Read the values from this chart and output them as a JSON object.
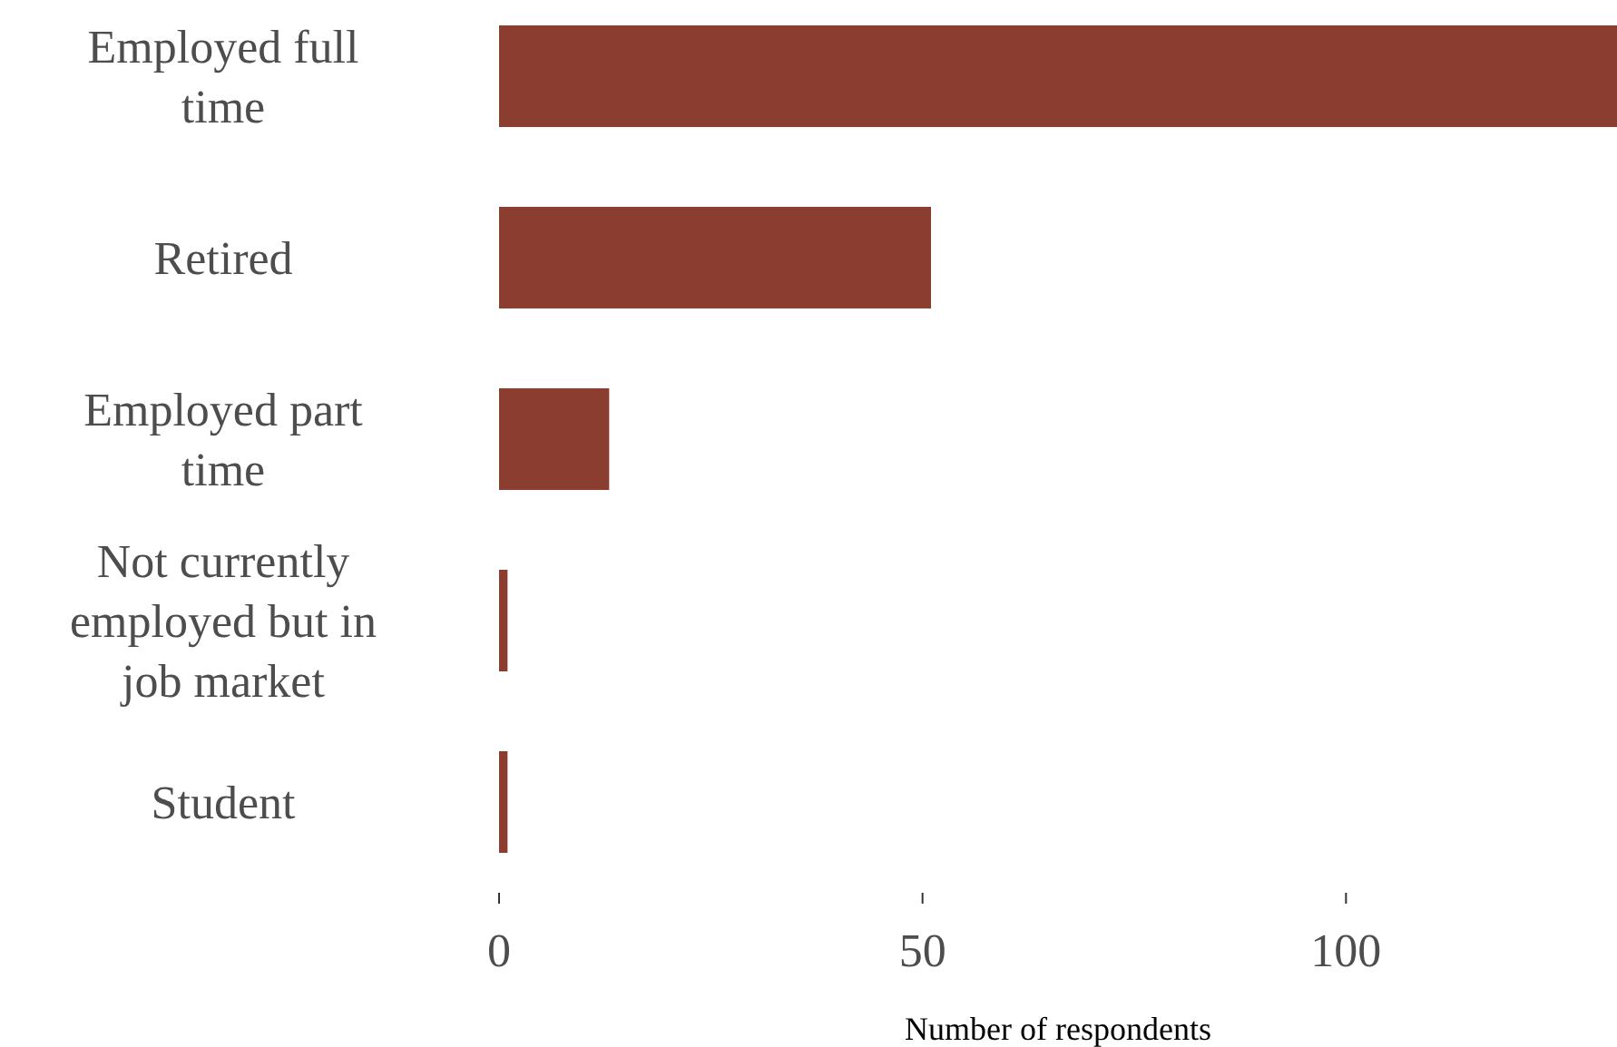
{
  "chart_data": {
    "type": "bar",
    "orientation": "horizontal",
    "xlabel": "Number of respondents",
    "categories": [
      "Employed full time",
      "Retired",
      "Employed part time",
      "Not currently employed but in job market",
      "Student"
    ],
    "values": [
      132,
      51,
      13,
      1,
      1
    ],
    "color": "#8b3e2f",
    "xlim": [
      0,
      132
    ],
    "xticks": [
      0,
      50,
      100
    ],
    "grid": false,
    "legend": false
  }
}
